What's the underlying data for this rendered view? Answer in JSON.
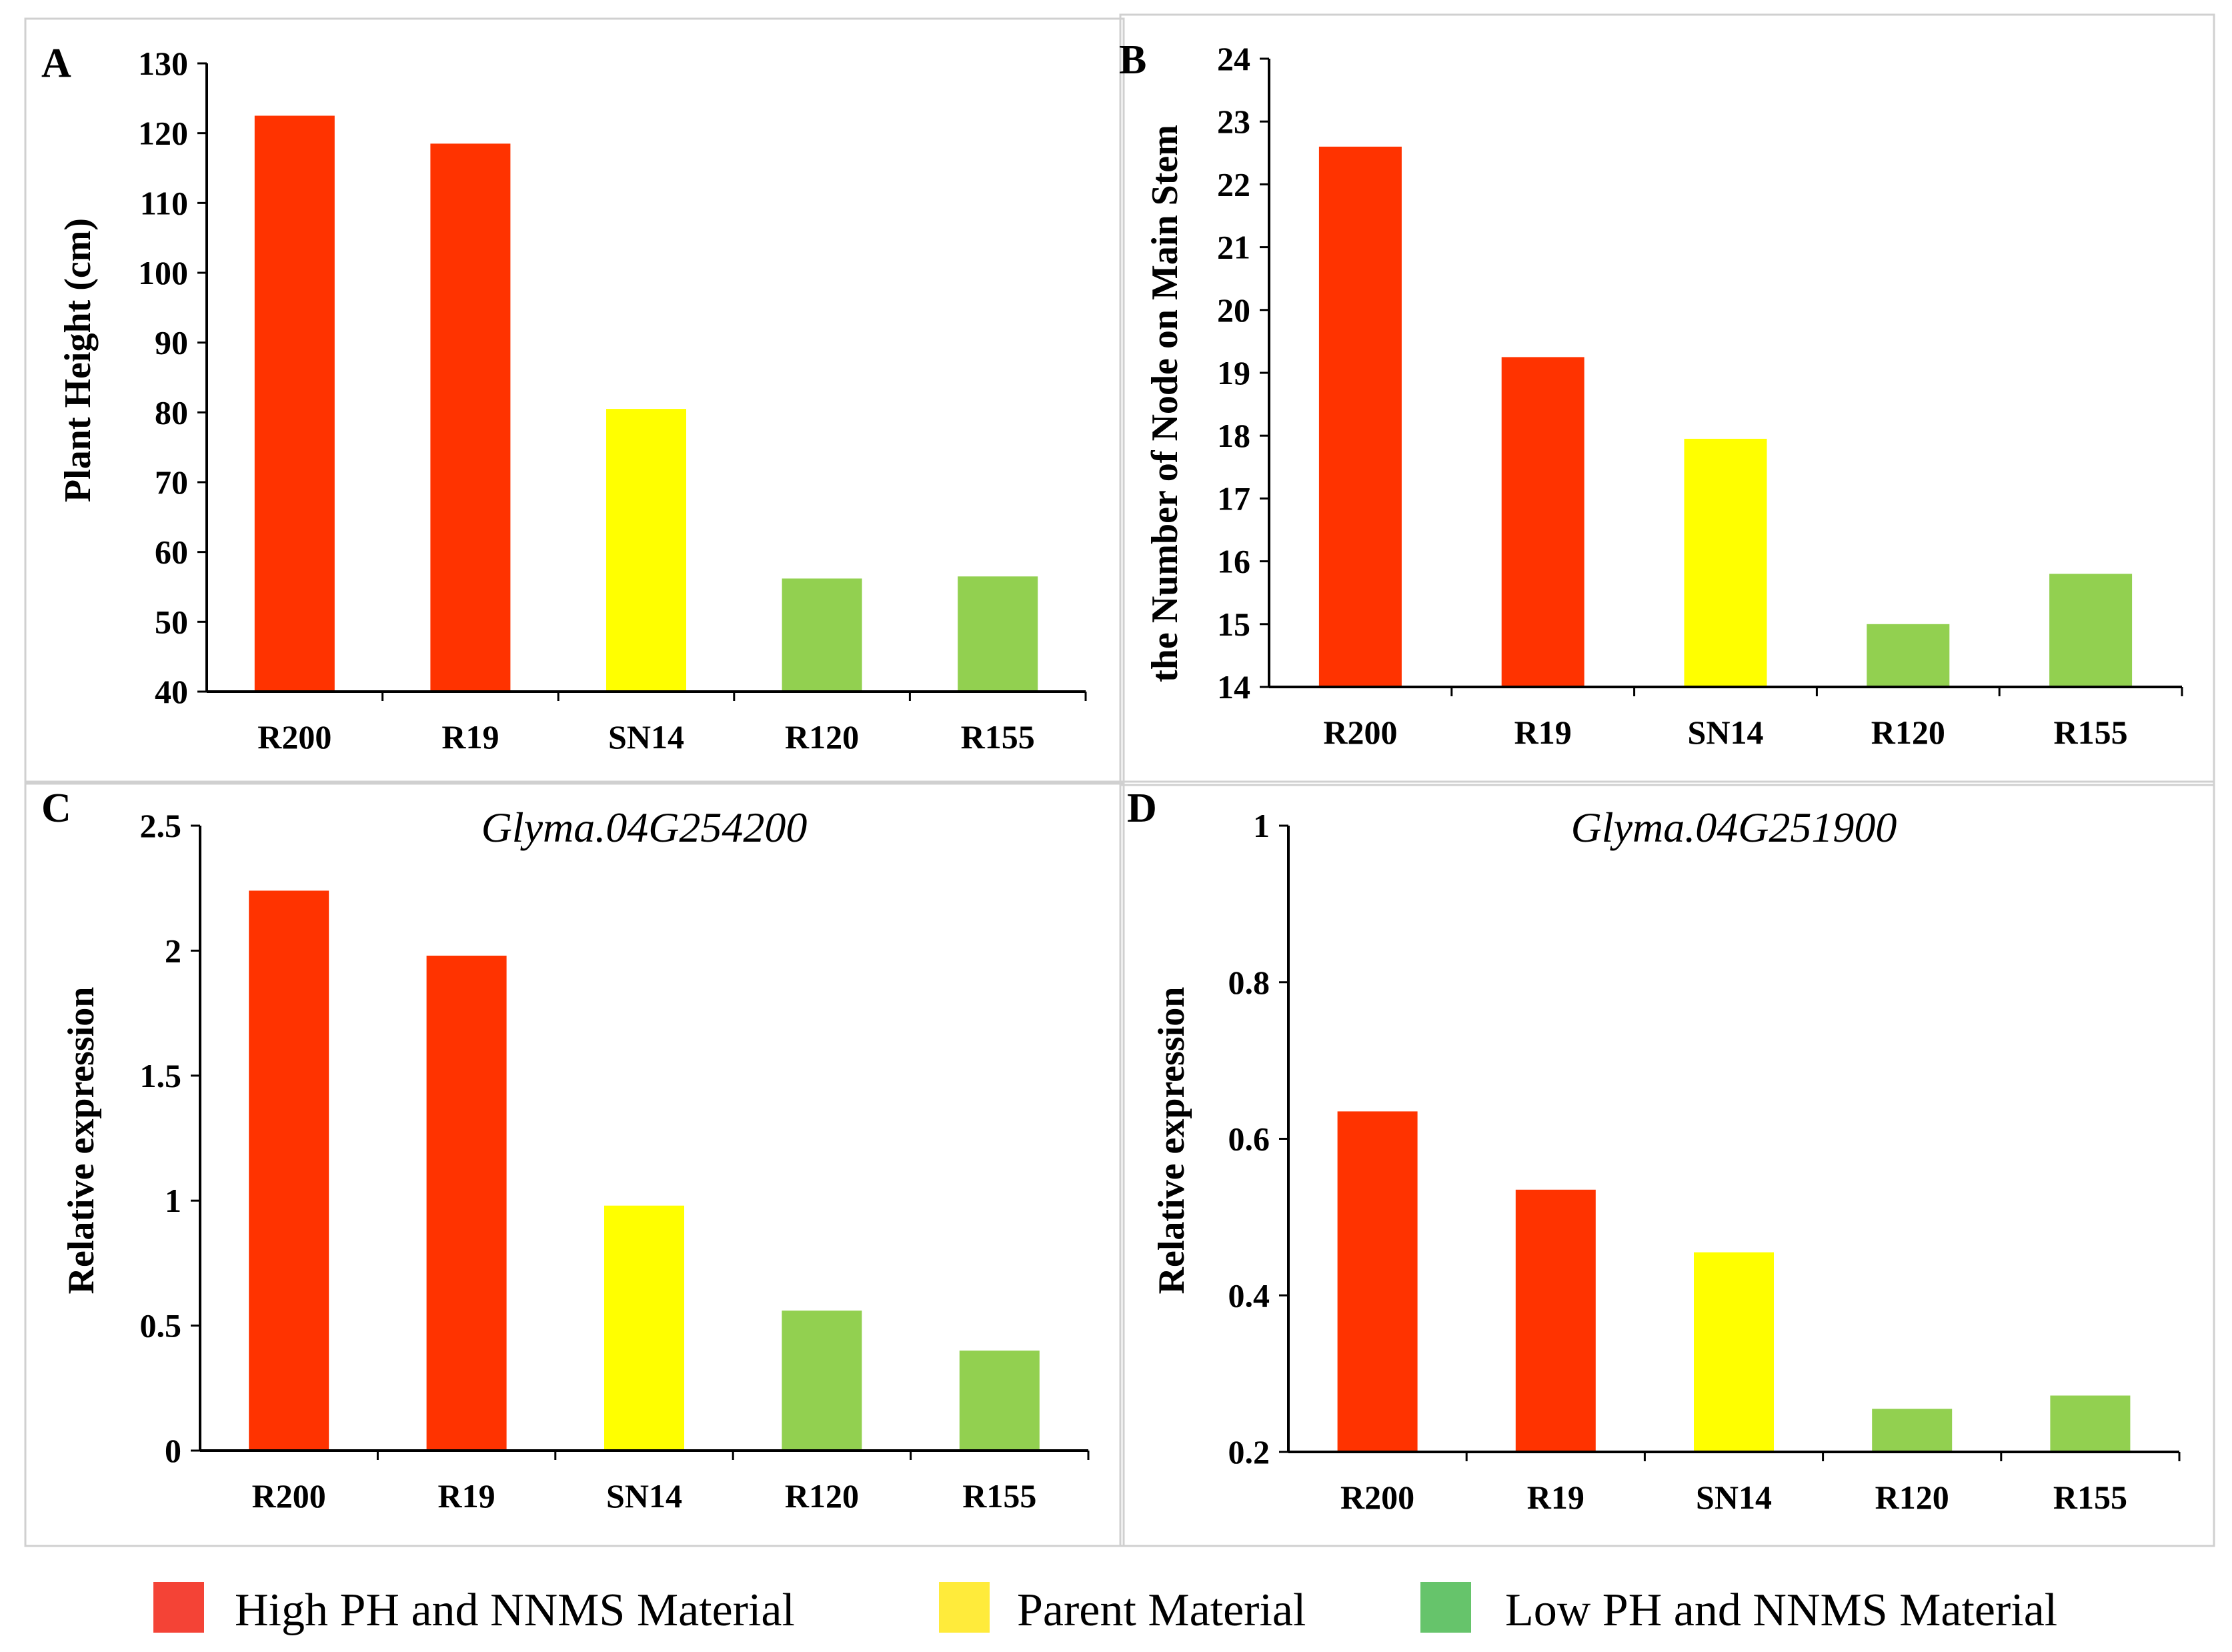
{
  "colors": {
    "high": "#ff3300",
    "parent": "#ffff00",
    "low": "#92d050",
    "legend_high": "#f44336",
    "legend_parent": "#ffeb3b",
    "legend_low": "#66c46b"
  },
  "legend": {
    "items": [
      {
        "label": "High PH and NNMS Material",
        "group": "high"
      },
      {
        "label": "Parent Material",
        "group": "parent"
      },
      {
        "label": "Low PH and NNMS Material",
        "group": "low"
      }
    ]
  },
  "chart_data": [
    {
      "panel": "A",
      "type": "bar",
      "title": "",
      "xlabel": "",
      "ylabel": "Plant Height (cm)",
      "categories": [
        "R200",
        "R19",
        "SN14",
        "R120",
        "R155"
      ],
      "groups": [
        "high",
        "high",
        "parent",
        "low",
        "low"
      ],
      "values": [
        122.5,
        118.5,
        80.5,
        56.2,
        56.5
      ],
      "ylim": [
        40,
        130
      ],
      "yticks": [
        40,
        50,
        60,
        70,
        80,
        90,
        100,
        110,
        120,
        130
      ],
      "ytick_labels": [
        "40",
        "50",
        "60",
        "70",
        "80",
        "90",
        "100",
        "110",
        "120",
        "130"
      ]
    },
    {
      "panel": "B",
      "type": "bar",
      "title": "",
      "xlabel": "",
      "ylabel": "the Number of Node on Main Stem",
      "categories": [
        "R200",
        "R19",
        "SN14",
        "R120",
        "R155"
      ],
      "groups": [
        "high",
        "high",
        "parent",
        "low",
        "low"
      ],
      "values": [
        22.6,
        19.25,
        17.95,
        15.0,
        15.8
      ],
      "ylim": [
        14,
        24
      ],
      "yticks": [
        14,
        15,
        16,
        17,
        18,
        19,
        20,
        21,
        22,
        23,
        24
      ],
      "ytick_labels": [
        "14",
        "15",
        "16",
        "17",
        "18",
        "19",
        "20",
        "21",
        "22",
        "23",
        "24"
      ]
    },
    {
      "panel": "C",
      "type": "bar",
      "title": "Glyma.04G254200",
      "xlabel": "",
      "ylabel": "Relative expression",
      "categories": [
        "R200",
        "R19",
        "SN14",
        "R120",
        "R155"
      ],
      "groups": [
        "high",
        "high",
        "parent",
        "low",
        "low"
      ],
      "values": [
        2.24,
        1.98,
        0.98,
        0.56,
        0.4
      ],
      "ylim": [
        0,
        2.5
      ],
      "yticks": [
        0,
        0.5,
        1,
        1.5,
        2,
        2.5
      ],
      "ytick_labels": [
        "0",
        "0.5",
        "1",
        "1.5",
        "2",
        "2.5"
      ]
    },
    {
      "panel": "D",
      "type": "bar",
      "title": "Glyma.04G251900",
      "xlabel": "",
      "ylabel": "Relative expression",
      "categories": [
        "R200",
        "R19",
        "SN14",
        "R120",
        "R155"
      ],
      "groups": [
        "high",
        "high",
        "parent",
        "low",
        "low"
      ],
      "values": [
        0.635,
        0.535,
        0.455,
        0.255,
        0.272
      ],
      "ylim": [
        0.2,
        1
      ],
      "yticks": [
        0.2,
        0.4,
        0.6,
        0.8,
        1
      ],
      "ytick_labels": [
        "0.2",
        "0.4",
        "0.6",
        "0.8",
        "1"
      ]
    }
  ]
}
